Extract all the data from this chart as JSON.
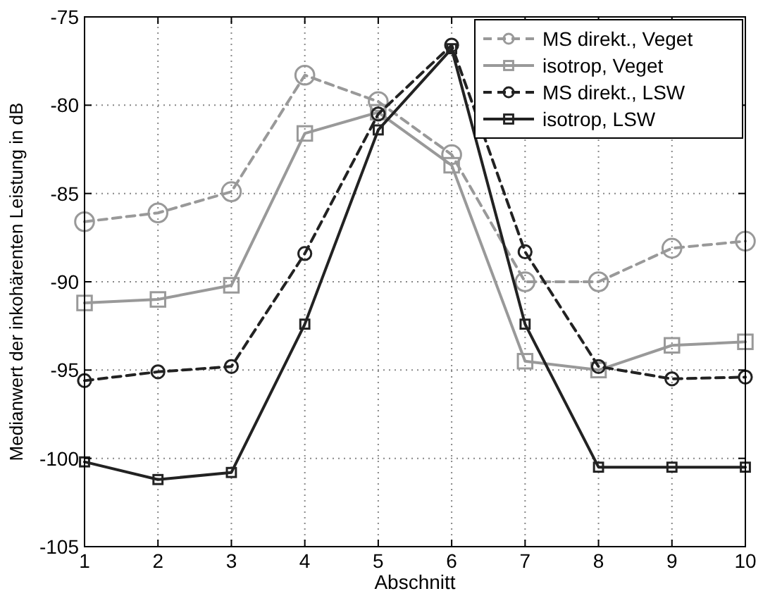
{
  "chart_data": {
    "type": "line",
    "xlabel": "Abschnitt",
    "ylabel": "Medianwert der inkohärenten Leistung in dB",
    "x": [
      1,
      2,
      3,
      4,
      5,
      6,
      7,
      8,
      9,
      10
    ],
    "xlim": [
      1,
      10
    ],
    "xticks": [
      1,
      2,
      3,
      4,
      5,
      6,
      7,
      8,
      9,
      10
    ],
    "ylim": [
      -105,
      -75
    ],
    "yticks": [
      -105,
      -100,
      -95,
      -90,
      -85,
      -80,
      -75
    ],
    "grid": true,
    "legend": "top right",
    "series": [
      {
        "name": "MS direkt., Veget",
        "color": "#999999",
        "marker": "circle",
        "line_style": "dashed",
        "values": [
          -86.6,
          -86.1,
          -84.9,
          -78.3,
          -79.8,
          -82.8,
          -90,
          -90,
          -88.1,
          -87.7
        ]
      },
      {
        "name": "isotrop, Veget",
        "color": "#999999",
        "marker": "square",
        "line_style": "solid",
        "values": [
          -91.2,
          -91.0,
          -90.2,
          -81.6,
          -80.4,
          -83.4,
          -94.5,
          -95.0,
          -93.6,
          -93.4
        ]
      },
      {
        "name": "MS direkt., LSW",
        "color": "#222222",
        "marker": "circle",
        "line_style": "dashed",
        "values": [
          -95.6,
          -95.1,
          -94.8,
          -88.4,
          -80.5,
          -76.6,
          -88.3,
          -94.8,
          -95.5,
          -95.4
        ]
      },
      {
        "name": "isotrop, LSW",
        "color": "#222222",
        "marker": "square",
        "line_style": "solid",
        "values": [
          -100.2,
          -101.2,
          -100.8,
          -92.4,
          -81.4,
          -76.8,
          -92.4,
          -100.5,
          -100.5,
          -100.5
        ]
      }
    ]
  }
}
